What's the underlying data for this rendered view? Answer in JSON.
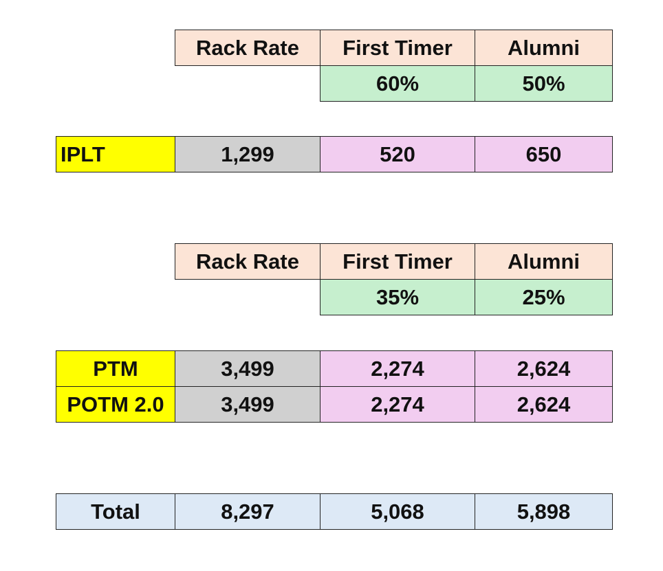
{
  "table1": {
    "header": [
      "Rack Rate",
      "First Timer",
      "Alumni"
    ],
    "discounts": [
      "60%",
      "50%"
    ]
  },
  "iplt": {
    "label": "IPLT",
    "values": [
      "1,299",
      "520",
      "650"
    ]
  },
  "table2": {
    "header": [
      "Rack Rate",
      "First Timer",
      "Alumni"
    ],
    "discounts": [
      "35%",
      "25%"
    ]
  },
  "products": [
    {
      "label": "PTM",
      "values": [
        "3,499",
        "2,274",
        "2,624"
      ]
    },
    {
      "label": "POTM 2.0",
      "values": [
        "3,499",
        "2,274",
        "2,624"
      ]
    }
  ],
  "total": {
    "label": "Total",
    "values": [
      "8,297",
      "5,068",
      "5,898"
    ]
  }
}
